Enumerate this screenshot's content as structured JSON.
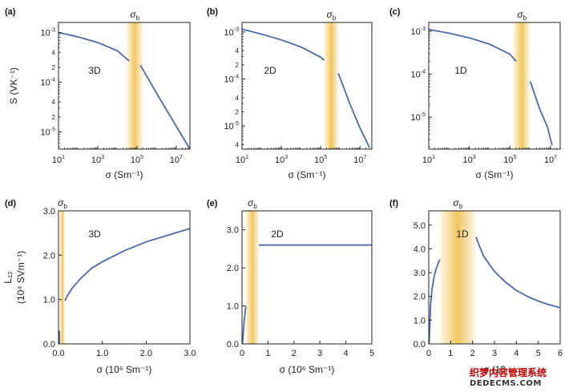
{
  "colors": {
    "curve": "#4c6aa6",
    "band": "#f0c457",
    "axis": "#222222"
  },
  "watermark": {
    "line1": "织梦内容管理系统",
    "line2": "DEDECMS.COM"
  },
  "chart_data": [
    {
      "label": "(a)",
      "type": "line",
      "dim_label": "3D",
      "band_label": "σb",
      "xscale": "log",
      "yscale": "log",
      "xlim": [
        10,
        50000000
      ],
      "ylim": [
        4.5e-06,
        0.0016
      ],
      "band": [
        30000,
        200000
      ],
      "ylabel": "S (VK⁻¹)",
      "xlabel": "σ (Sm⁻¹)",
      "xticks": [
        {
          "v": 10,
          "b": "10",
          "e": "1"
        },
        {
          "v": 1000,
          "b": "10",
          "e": "3"
        },
        {
          "v": 100000,
          "b": "10",
          "e": "5"
        },
        {
          "v": 10000000,
          "b": "10",
          "e": "7"
        }
      ],
      "yticks": [
        {
          "v": 0.001,
          "b": "10",
          "e": "-3",
          "major": true
        },
        {
          "v": 0.0004,
          "t": "4"
        },
        {
          "v": 0.0002,
          "t": "2"
        },
        {
          "v": 0.0001,
          "b": "10",
          "e": "-4",
          "major": true
        },
        {
          "v": 4e-05,
          "t": "4"
        },
        {
          "v": 2e-05,
          "t": "2"
        },
        {
          "v": 1e-05,
          "b": "10",
          "e": "-5",
          "major": true
        }
      ],
      "series": [
        {
          "x": [
            10,
            100,
            1000,
            10000,
            40000
          ],
          "y": [
            0.001,
            0.00082,
            0.00063,
            0.00043,
            0.00027
          ]
        },
        {
          "x": [
            150000,
            1000000,
            10000000,
            50000000
          ],
          "y": [
            0.00022,
            6e-05,
            1.3e-05,
            4.5e-06
          ]
        }
      ]
    },
    {
      "label": "(b)",
      "type": "line",
      "dim_label": "2D",
      "band_label": "σb",
      "xscale": "log",
      "yscale": "log",
      "xlim": [
        10,
        40000000
      ],
      "ylim": [
        3.2e-06,
        0.0016
      ],
      "band": [
        150000,
        800000
      ],
      "ylabel": "",
      "xlabel": "σ (Sm⁻¹)",
      "xticks": [
        {
          "v": 10,
          "b": "10",
          "e": "1"
        },
        {
          "v": 1000,
          "b": "10",
          "e": "3"
        },
        {
          "v": 100000,
          "b": "10",
          "e": "5"
        },
        {
          "v": 10000000,
          "b": "10",
          "e": "7"
        }
      ],
      "yticks": [
        {
          "v": 0.001,
          "b": "10",
          "e": "-3",
          "major": true
        },
        {
          "v": 0.0004,
          "t": "4"
        },
        {
          "v": 0.0002,
          "t": "2"
        },
        {
          "v": 0.0001,
          "b": "10",
          "e": "-4",
          "major": true
        },
        {
          "v": 4e-05,
          "t": "4"
        },
        {
          "v": 2e-05,
          "t": "2"
        },
        {
          "v": 1e-05,
          "b": "10",
          "e": "-5",
          "major": true
        },
        {
          "v": 4e-06,
          "t": "4"
        }
      ],
      "series": [
        {
          "x": [
            10,
            100,
            1000,
            10000,
            100000,
            150000
          ],
          "y": [
            0.00115,
            0.0009,
            0.00068,
            0.00048,
            0.00029,
            0.00025
          ]
        },
        {
          "x": [
            800000,
            3000000,
            10000000,
            30000000
          ],
          "y": [
            0.00013,
            3e-05,
            9e-06,
            3.5e-06
          ]
        }
      ]
    },
    {
      "label": "(c)",
      "type": "line",
      "dim_label": "1D",
      "band_label": "σb",
      "xscale": "log",
      "yscale": "log",
      "xlim": [
        10,
        30000000
      ],
      "ylim": [
        1.8e-06,
        0.0016
      ],
      "band": [
        150000,
        1000000
      ],
      "ylabel": "",
      "xlabel": "σ (Sm⁻¹)",
      "xticks": [
        {
          "v": 10,
          "b": "10",
          "e": "1"
        },
        {
          "v": 1000,
          "b": "10",
          "e": "3"
        },
        {
          "v": 100000,
          "b": "10",
          "e": "5"
        },
        {
          "v": 10000000,
          "b": "10",
          "e": "7"
        }
      ],
      "yticks": [
        {
          "v": 0.001,
          "b": "10",
          "e": "-3",
          "major": true
        },
        {
          "v": 0.0001,
          "b": "10",
          "e": "-4",
          "major": true
        },
        {
          "v": 1e-05,
          "b": "10",
          "e": "-5",
          "major": true
        }
      ],
      "series": [
        {
          "x": [
            10,
            100,
            1000,
            10000,
            100000,
            200000
          ],
          "y": [
            0.0011,
            0.0009,
            0.0007,
            0.0005,
            0.00029,
            0.0002
          ]
        },
        {
          "x": [
            1000000,
            3000000,
            7000000,
            12000000
          ],
          "y": [
            6.8e-05,
            1.5e-05,
            6e-06,
            2.2e-06
          ]
        }
      ]
    },
    {
      "label": "(d)",
      "type": "line",
      "dim_label": "3D",
      "band_label": "σb",
      "xscale": "linear",
      "yscale": "linear",
      "xlim": [
        0,
        3
      ],
      "ylim": [
        0,
        3
      ],
      "band": [
        0.03,
        0.15
      ],
      "ylabel_line1": "L₁₂",
      "ylabel_line2": "(10⁴ SVm⁻¹)",
      "xlabel": "σ (10⁶ Sm⁻¹)",
      "xticks": [
        {
          "v": 0,
          "t": "0.0"
        },
        {
          "v": 1,
          "t": "1.0"
        },
        {
          "v": 2,
          "t": "2.0"
        },
        {
          "v": 3,
          "t": "3.0"
        }
      ],
      "yticks": [
        {
          "v": 0,
          "t": "0.0"
        },
        {
          "v": 1,
          "t": "1.0"
        },
        {
          "v": 2,
          "t": "2.0"
        },
        {
          "v": 3,
          "t": "3.0"
        }
      ],
      "series": [
        {
          "x": [
            0.02,
            0.02
          ],
          "y": [
            0.0,
            0.3
          ]
        },
        {
          "x": [
            0.15,
            0.2,
            0.3,
            0.5,
            0.75,
            1.0,
            1.5,
            2.0,
            2.5,
            3.0
          ],
          "y": [
            0.97,
            1.08,
            1.24,
            1.47,
            1.7,
            1.85,
            2.1,
            2.3,
            2.45,
            2.6
          ]
        }
      ]
    },
    {
      "label": "(e)",
      "type": "line",
      "dim_label": "2D",
      "band_label": "σb",
      "xscale": "linear",
      "yscale": "linear",
      "xlim": [
        0,
        5
      ],
      "ylim": [
        0,
        3.5
      ],
      "band": [
        0.15,
        0.65
      ],
      "ylabel": "",
      "xlabel": "σ (10⁶ Sm⁻¹)",
      "xticks": [
        {
          "v": 0,
          "t": "0"
        },
        {
          "v": 1,
          "t": "1"
        },
        {
          "v": 2,
          "t": "2"
        },
        {
          "v": 3,
          "t": "3"
        },
        {
          "v": 4,
          "t": "4"
        },
        {
          "v": 5,
          "t": "5"
        }
      ],
      "yticks": [
        {
          "v": 0,
          "t": "0.0"
        },
        {
          "v": 1,
          "t": "1.0"
        },
        {
          "v": 2,
          "t": "2.0"
        },
        {
          "v": 3,
          "t": "3.0"
        }
      ],
      "series": [
        {
          "x": [
            0.02,
            0.08,
            0.15
          ],
          "y": [
            0.0,
            0.6,
            1.0
          ]
        },
        {
          "x": [
            0.65,
            5.0
          ],
          "y": [
            2.6,
            2.6
          ]
        }
      ]
    },
    {
      "label": "(f)",
      "type": "line",
      "dim_label": "1D",
      "band_label": "σb",
      "xscale": "linear",
      "yscale": "linear",
      "xlim": [
        0,
        6
      ],
      "ylim": [
        0,
        5.6
      ],
      "band": [
        0.5,
        2.15
      ],
      "ylabel": "",
      "xlabel": "σ (10",
      "xticks": [
        {
          "v": 0,
          "t": "0"
        },
        {
          "v": 1,
          "t": "1"
        },
        {
          "v": 2,
          "t": "2"
        },
        {
          "v": 3,
          "t": "3"
        },
        {
          "v": 4,
          "t": "4"
        },
        {
          "v": 5,
          "t": "5"
        },
        {
          "v": 6,
          "t": "6"
        }
      ],
      "yticks": [
        {
          "v": 0,
          "t": "0.0"
        },
        {
          "v": 1,
          "t": "1.0"
        },
        {
          "v": 2,
          "t": "2.0"
        },
        {
          "v": 3,
          "t": "3.0"
        },
        {
          "v": 4,
          "t": "4.0"
        },
        {
          "v": 5,
          "t": "5.0"
        }
      ],
      "series": [
        {
          "x": [
            0.02,
            0.08,
            0.15,
            0.25,
            0.35,
            0.5
          ],
          "y": [
            0.0,
            1.6,
            2.3,
            2.85,
            3.2,
            3.55
          ]
        },
        {
          "x": [
            2.15,
            2.5,
            3.0,
            3.5,
            4.0,
            4.5,
            5.0,
            5.5,
            6.0
          ],
          "y": [
            4.5,
            3.7,
            3.05,
            2.6,
            2.25,
            2.0,
            1.8,
            1.65,
            1.52
          ]
        }
      ]
    }
  ]
}
